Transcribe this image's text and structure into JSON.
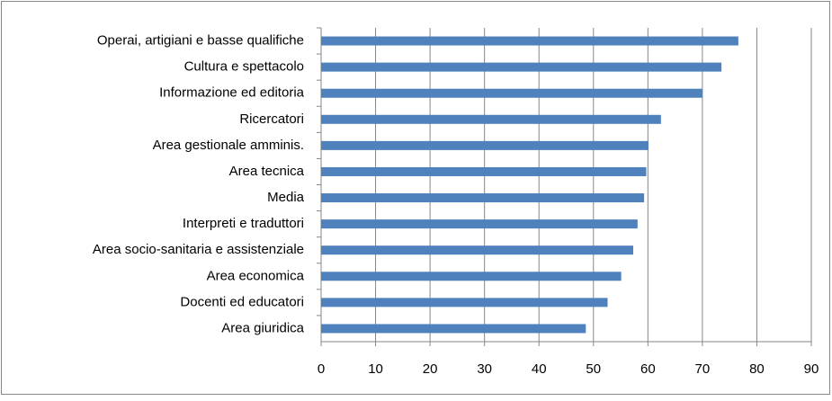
{
  "chart_data": {
    "type": "bar",
    "orientation": "horizontal",
    "categories": [
      "Operai, artigiani e basse qualifiche",
      "Cultura e spettacolo",
      "Informazione ed editoria",
      "Ricercatori",
      "Area gestionale amminis.",
      "Area tecnica",
      "Media",
      "Interpreti e traduttori",
      "Area socio-sanitaria e assistenziale",
      "Area economica",
      "Docenti ed educatori",
      "Area giuridica"
    ],
    "values": [
      76.6,
      73.5,
      70,
      62.4,
      60.1,
      59.7,
      59.3,
      58.1,
      57.3,
      55.1,
      52.6,
      48.6
    ],
    "color": "#4f81bd",
    "xlim": [
      0,
      90
    ],
    "xticks": [
      0,
      10,
      20,
      30,
      40,
      50,
      60,
      70,
      80,
      90
    ],
    "grid": true
  }
}
